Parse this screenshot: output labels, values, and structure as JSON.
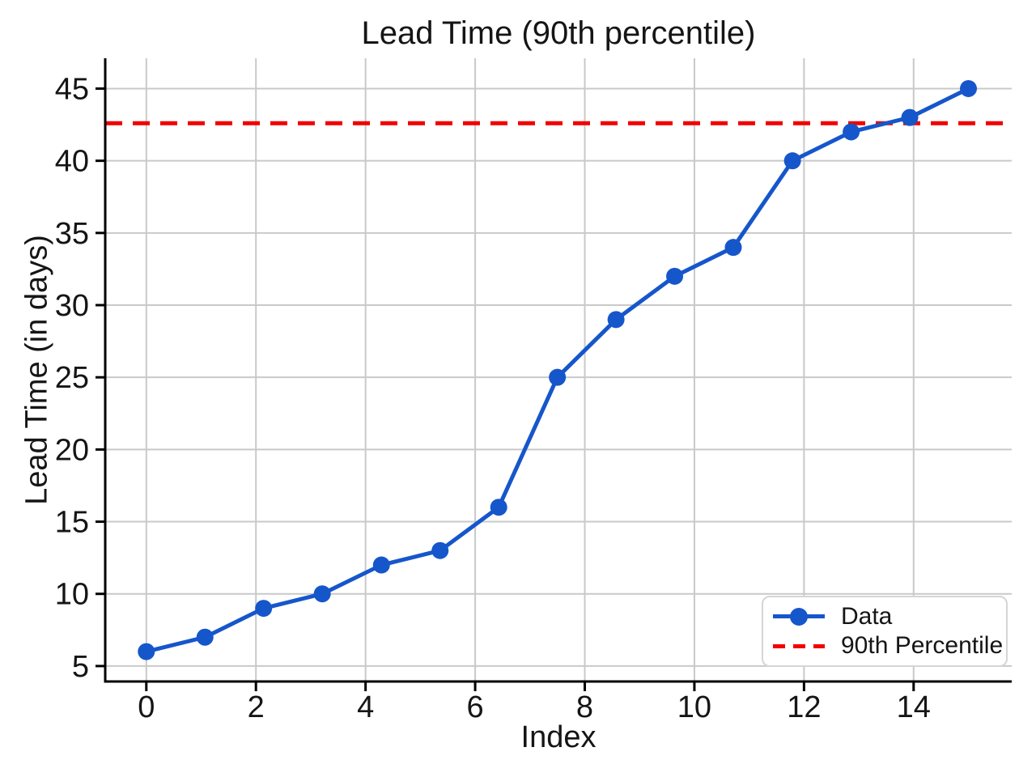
{
  "chart_data": {
    "type": "line",
    "title": "Lead Time (90th percentile)",
    "xlabel": "Index",
    "ylabel": "Lead Time (in days)",
    "x": [
      0,
      1.07,
      2.14,
      3.21,
      4.29,
      5.36,
      6.43,
      7.5,
      8.57,
      9.64,
      10.71,
      11.79,
      12.86,
      13.93,
      15
    ],
    "y": [
      6,
      7,
      9,
      10,
      12,
      13,
      16,
      25,
      29,
      32,
      34,
      40,
      42,
      43,
      45
    ],
    "series_name": "Data",
    "reference_line": {
      "label": "90th Percentile",
      "value": 42.6
    },
    "xticks": [
      0,
      2,
      4,
      6,
      8,
      10,
      12,
      14
    ],
    "yticks": [
      5,
      10,
      15,
      20,
      25,
      30,
      35,
      40,
      45
    ],
    "xlim": [
      -0.75,
      15.79
    ],
    "ylim": [
      3.93,
      47.1
    ],
    "grid": true,
    "legend_position": "lower right",
    "colors": {
      "data_line": "#1656cb",
      "reference_line": "#f20000",
      "grid": "#c9c9c9",
      "axis": "#000000",
      "background": "#ffffff"
    }
  }
}
